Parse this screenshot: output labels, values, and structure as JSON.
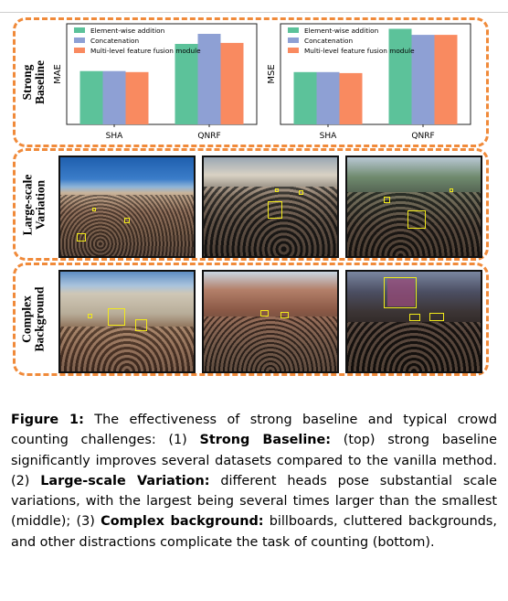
{
  "rows": [
    {
      "label_line1": "Strong",
      "label_line2": "Baseline"
    },
    {
      "label_line1": "Large-scale",
      "label_line2": "Variation"
    },
    {
      "label_line1": "Complex",
      "label_line2": "Background"
    }
  ],
  "colors": {
    "dash_border": "#f08a3a",
    "element_wise": "#5cc29a",
    "concatenation": "#8ea0d4",
    "multi_level": "#f98a60",
    "annotation_box": "#f2ea1a"
  },
  "chart_data": [
    {
      "type": "bar",
      "ylabel": "MAE",
      "categories": [
        "SHA",
        "QNRF"
      ],
      "series": [
        {
          "name": "Element-wise addition",
          "values": [
            0.53,
            0.8
          ]
        },
        {
          "name": "Concatenation",
          "values": [
            0.53,
            0.9
          ]
        },
        {
          "name": "Multi-level feature fusion module",
          "values": [
            0.52,
            0.81
          ]
        }
      ],
      "legend": "top-left",
      "grid": false
    },
    {
      "type": "bar",
      "ylabel": "MSE",
      "categories": [
        "SHA",
        "QNRF"
      ],
      "series": [
        {
          "name": "Element-wise addition",
          "values": [
            0.52,
            0.95
          ]
        },
        {
          "name": "Concatenation",
          "values": [
            0.52,
            0.89
          ]
        },
        {
          "name": "Multi-level feature fusion module",
          "values": [
            0.51,
            0.89
          ]
        }
      ],
      "legend": "top-left",
      "grid": false
    }
  ],
  "caption": {
    "fig_label": "Figure 1:",
    "t1": " The effectiveness of strong baseline and typical crowd counting challenges: (1) ",
    "b1": "Strong Baseline:",
    "t2": " (top) strong baseline significantly improves several datasets compared to the vanilla method. (2) ",
    "b2": "Large-scale Variation:",
    "t3": " different heads pose substantial scale variations, with the largest being several times larger than the smallest (middle); (3) ",
    "b3": "Complex background:",
    "t4": " billboards, cluttered backgrounds, and other distractions complicate the task of counting (bottom)."
  }
}
